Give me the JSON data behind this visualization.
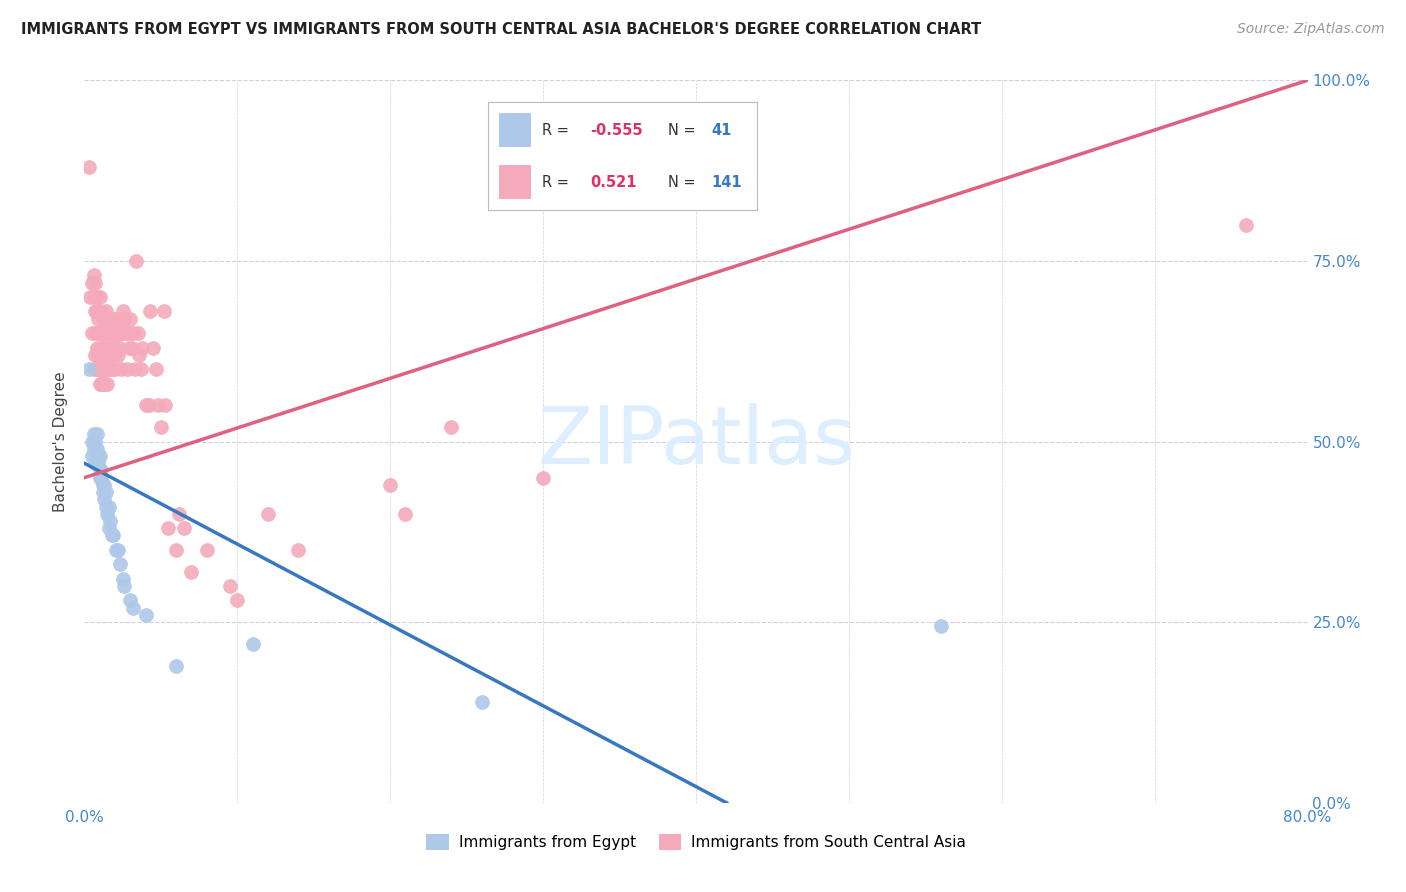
{
  "title": "IMMIGRANTS FROM EGYPT VS IMMIGRANTS FROM SOUTH CENTRAL ASIA BACHELOR'S DEGREE CORRELATION CHART",
  "source": "Source: ZipAtlas.com",
  "ylabel": "Bachelor's Degree",
  "xlim": [
    0.0,
    0.8
  ],
  "ylim": [
    0.0,
    1.0
  ],
  "xtick_positions": [
    0.0,
    0.1,
    0.2,
    0.3,
    0.4,
    0.5,
    0.6,
    0.7,
    0.8
  ],
  "xtick_labels": [
    "0.0%",
    "",
    "",
    "",
    "",
    "",
    "",
    "",
    "80.0%"
  ],
  "ytick_positions": [
    0.0,
    0.25,
    0.5,
    0.75,
    1.0
  ],
  "ytick_labels_right": [
    "0.0%",
    "25.0%",
    "50.0%",
    "75.0%",
    "100.0%"
  ],
  "egypt_color": "#adc8e8",
  "sca_color": "#f4aabb",
  "egypt_line_color": "#3878c0",
  "sca_line_color": "#e06080",
  "grid_color": "#d0d0e0",
  "background_color": "#ffffff",
  "watermark_color": "#ddeeff",
  "egypt_trend_x": [
    0.0,
    0.42
  ],
  "egypt_trend_y": [
    0.47,
    0.0
  ],
  "sca_trend_x": [
    0.0,
    0.8
  ],
  "sca_trend_y": [
    0.45,
    1.0
  ],
  "egypt_scatter": [
    [
      0.003,
      0.6
    ],
    [
      0.005,
      0.5
    ],
    [
      0.005,
      0.48
    ],
    [
      0.006,
      0.49
    ],
    [
      0.006,
      0.51
    ],
    [
      0.007,
      0.5
    ],
    [
      0.007,
      0.47
    ],
    [
      0.008,
      0.49
    ],
    [
      0.008,
      0.51
    ],
    [
      0.009,
      0.48
    ],
    [
      0.009,
      0.47
    ],
    [
      0.01,
      0.46
    ],
    [
      0.01,
      0.48
    ],
    [
      0.01,
      0.45
    ],
    [
      0.011,
      0.46
    ],
    [
      0.011,
      0.45
    ],
    [
      0.012,
      0.44
    ],
    [
      0.012,
      0.43
    ],
    [
      0.013,
      0.44
    ],
    [
      0.013,
      0.42
    ],
    [
      0.014,
      0.43
    ],
    [
      0.014,
      0.41
    ],
    [
      0.015,
      0.4
    ],
    [
      0.016,
      0.41
    ],
    [
      0.016,
      0.38
    ],
    [
      0.017,
      0.39
    ],
    [
      0.018,
      0.37
    ],
    [
      0.019,
      0.37
    ],
    [
      0.021,
      0.35
    ],
    [
      0.022,
      0.35
    ],
    [
      0.023,
      0.33
    ],
    [
      0.025,
      0.31
    ],
    [
      0.026,
      0.3
    ],
    [
      0.03,
      0.28
    ],
    [
      0.032,
      0.27
    ],
    [
      0.04,
      0.26
    ],
    [
      0.06,
      0.19
    ],
    [
      0.11,
      0.22
    ],
    [
      0.26,
      0.14
    ],
    [
      0.56,
      0.245
    ]
  ],
  "sca_scatter": [
    [
      0.003,
      0.88
    ],
    [
      0.004,
      0.7
    ],
    [
      0.005,
      0.72
    ],
    [
      0.005,
      0.65
    ],
    [
      0.006,
      0.7
    ],
    [
      0.006,
      0.73
    ],
    [
      0.006,
      0.6
    ],
    [
      0.007,
      0.72
    ],
    [
      0.007,
      0.68
    ],
    [
      0.007,
      0.65
    ],
    [
      0.007,
      0.62
    ],
    [
      0.008,
      0.7
    ],
    [
      0.008,
      0.68
    ],
    [
      0.008,
      0.65
    ],
    [
      0.008,
      0.63
    ],
    [
      0.008,
      0.6
    ],
    [
      0.009,
      0.68
    ],
    [
      0.009,
      0.67
    ],
    [
      0.009,
      0.65
    ],
    [
      0.009,
      0.62
    ],
    [
      0.009,
      0.6
    ],
    [
      0.01,
      0.7
    ],
    [
      0.01,
      0.68
    ],
    [
      0.01,
      0.65
    ],
    [
      0.01,
      0.63
    ],
    [
      0.01,
      0.6
    ],
    [
      0.01,
      0.58
    ],
    [
      0.011,
      0.68
    ],
    [
      0.011,
      0.65
    ],
    [
      0.011,
      0.62
    ],
    [
      0.011,
      0.6
    ],
    [
      0.011,
      0.58
    ],
    [
      0.012,
      0.67
    ],
    [
      0.012,
      0.65
    ],
    [
      0.012,
      0.63
    ],
    [
      0.012,
      0.6
    ],
    [
      0.012,
      0.58
    ],
    [
      0.013,
      0.67
    ],
    [
      0.013,
      0.65
    ],
    [
      0.013,
      0.63
    ],
    [
      0.013,
      0.6
    ],
    [
      0.013,
      0.58
    ],
    [
      0.014,
      0.68
    ],
    [
      0.014,
      0.65
    ],
    [
      0.014,
      0.62
    ],
    [
      0.014,
      0.6
    ],
    [
      0.015,
      0.67
    ],
    [
      0.015,
      0.65
    ],
    [
      0.015,
      0.63
    ],
    [
      0.015,
      0.6
    ],
    [
      0.015,
      0.58
    ],
    [
      0.016,
      0.65
    ],
    [
      0.016,
      0.62
    ],
    [
      0.016,
      0.6
    ],
    [
      0.017,
      0.67
    ],
    [
      0.017,
      0.65
    ],
    [
      0.017,
      0.62
    ],
    [
      0.018,
      0.65
    ],
    [
      0.018,
      0.62
    ],
    [
      0.018,
      0.6
    ],
    [
      0.019,
      0.67
    ],
    [
      0.019,
      0.64
    ],
    [
      0.02,
      0.65
    ],
    [
      0.02,
      0.62
    ],
    [
      0.02,
      0.6
    ],
    [
      0.021,
      0.67
    ],
    [
      0.021,
      0.63
    ],
    [
      0.022,
      0.65
    ],
    [
      0.022,
      0.62
    ],
    [
      0.023,
      0.67
    ],
    [
      0.023,
      0.63
    ],
    [
      0.024,
      0.65
    ],
    [
      0.024,
      0.6
    ],
    [
      0.025,
      0.68
    ],
    [
      0.025,
      0.65
    ],
    [
      0.026,
      0.67
    ],
    [
      0.027,
      0.65
    ],
    [
      0.028,
      0.65
    ],
    [
      0.028,
      0.6
    ],
    [
      0.029,
      0.63
    ],
    [
      0.03,
      0.67
    ],
    [
      0.03,
      0.65
    ],
    [
      0.031,
      0.63
    ],
    [
      0.032,
      0.65
    ],
    [
      0.033,
      0.6
    ],
    [
      0.034,
      0.75
    ],
    [
      0.035,
      0.65
    ],
    [
      0.036,
      0.62
    ],
    [
      0.037,
      0.6
    ],
    [
      0.038,
      0.63
    ],
    [
      0.04,
      0.55
    ],
    [
      0.042,
      0.55
    ],
    [
      0.043,
      0.68
    ],
    [
      0.045,
      0.63
    ],
    [
      0.047,
      0.6
    ],
    [
      0.048,
      0.55
    ],
    [
      0.05,
      0.52
    ],
    [
      0.052,
      0.68
    ],
    [
      0.053,
      0.55
    ],
    [
      0.055,
      0.38
    ],
    [
      0.06,
      0.35
    ],
    [
      0.062,
      0.4
    ],
    [
      0.065,
      0.38
    ],
    [
      0.07,
      0.32
    ],
    [
      0.08,
      0.35
    ],
    [
      0.095,
      0.3
    ],
    [
      0.1,
      0.28
    ],
    [
      0.12,
      0.4
    ],
    [
      0.14,
      0.35
    ],
    [
      0.2,
      0.44
    ],
    [
      0.21,
      0.4
    ],
    [
      0.24,
      0.52
    ],
    [
      0.3,
      0.45
    ],
    [
      0.76,
      0.8
    ]
  ]
}
